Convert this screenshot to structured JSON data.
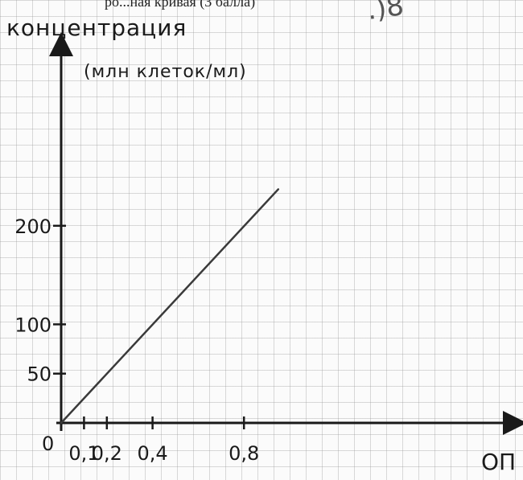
{
  "page": {
    "header_fragment": "ро...ная кривая (3 балла)",
    "score_mark": ".)8"
  },
  "chart_data": {
    "type": "line",
    "ylabel": "концентрация",
    "ylabel_units": "(млн клеток/мл)",
    "xlabel": "ОП",
    "origin_label": "0",
    "x_ticks": [
      "0,1",
      "0,2",
      "0,4",
      "0,8"
    ],
    "x_tick_values": [
      0.1,
      0.2,
      0.4,
      0.8
    ],
    "y_ticks": [
      "50",
      "100",
      "200"
    ],
    "y_tick_values": [
      50,
      100,
      200
    ],
    "series": [
      {
        "values_x": [
          0,
          0.95
        ],
        "values_y": [
          0,
          237
        ],
        "color": "#3a3a3a"
      }
    ],
    "xlim": [
      0,
      2.0
    ],
    "ylim": [
      0,
      330
    ],
    "grid": true
  }
}
